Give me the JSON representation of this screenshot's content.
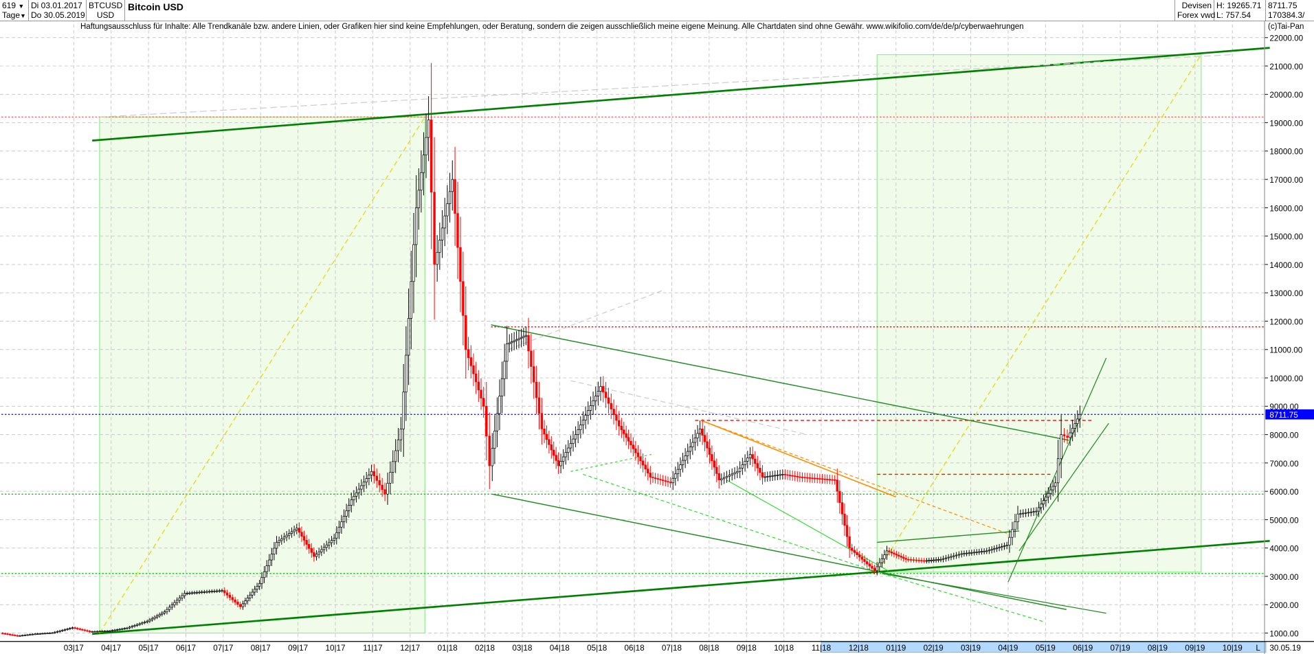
{
  "header": {
    "bars_count": "619",
    "period": "Tage",
    "start_date": "Di 03.01.2017",
    "end_date": "Do 30.05.2019",
    "symbol": "BTCUSD",
    "currency": "USD",
    "title": "Bitcoin USD",
    "market": "Devisen",
    "source": "Forex vwd",
    "high": "H: 19265.71",
    "low": "L: 757.54",
    "last": "8711.75",
    "volume": "170384.3/",
    "dropdown_icon": "caret-down-icon"
  },
  "disclaimer": "Haftungsausschluss für Inhalte: Alle Trendkanäle bzw. andere Linien, oder Grafiken hier sind keine Empfehlungen, oder Beratung, sondern die zeigen ausschließlich meine eigene Meinung. Alle Chartdaten sind ohne Gewähr.  www.wikifolio.com/de/de/p/cyberwaehrungen",
  "copyright": "(c)Tai-Pan",
  "colors": {
    "up_body": "#ffffff",
    "down_body": "#ff0000",
    "candle_outline": "#000000",
    "zone_fill": "#f0fbea",
    "zone_border": "#90ee90",
    "trend_green": "#008000",
    "last_price": "#0000ff",
    "resistance": "#ff0000",
    "support": "#00cc00",
    "axis_highlight": "#b3d9ff"
  },
  "chart_data": {
    "type": "candlestick",
    "title": "Bitcoin USD",
    "ylim": [
      1000,
      22000
    ],
    "y_ticks": [
      1000,
      2000,
      3000,
      4000,
      5000,
      6000,
      7000,
      8000,
      9000,
      10000,
      11000,
      12000,
      13000,
      14000,
      15000,
      16000,
      17000,
      18000,
      19000,
      20000,
      21000,
      22000
    ],
    "x_ticks": [
      "03|17",
      "04|17",
      "05|17",
      "06|17",
      "07|17",
      "08|17",
      "09|17",
      "10|17",
      "11|17",
      "12|17",
      "01|18",
      "02|18",
      "03|18",
      "04|18",
      "05|18",
      "06|18",
      "07|18",
      "08|18",
      "09|18",
      "10|18",
      "11|18",
      "12|18",
      "01|19",
      "02|19",
      "03|19",
      "04|19",
      "05|19",
      "06|19",
      "07|19",
      "08|19",
      "09|19",
      "10|19"
    ],
    "x_tick_months": [
      "2017-03",
      "2017-04",
      "2017-05",
      "2017-06",
      "2017-07",
      "2017-08",
      "2017-09",
      "2017-10",
      "2017-11",
      "2017-12",
      "2018-01",
      "2018-02",
      "2018-03",
      "2018-04",
      "2018-05",
      "2018-06",
      "2018-07",
      "2018-08",
      "2018-09",
      "2018-10",
      "2018-11",
      "2018-12",
      "2019-01",
      "2019-02",
      "2019-03",
      "2019-04",
      "2019-05",
      "2019-06",
      "2019-07",
      "2019-08",
      "2019-09",
      "2019-10"
    ],
    "x_axis_highlight": [
      "2018-11",
      "2019-10"
    ],
    "x_axis_end_label": "L",
    "x_axis_last_date": "30.05.19",
    "grid": true,
    "last_price_label": "8711.75",
    "closes": [
      [
        "2017-01-03",
        1000
      ],
      [
        "2017-01-17",
        900
      ],
      [
        "2017-02-01",
        970
      ],
      [
        "2017-02-15",
        1010
      ],
      [
        "2017-03-01",
        1190
      ],
      [
        "2017-03-15",
        1050
      ],
      [
        "2017-04-01",
        1080
      ],
      [
        "2017-04-15",
        1180
      ],
      [
        "2017-05-01",
        1420
      ],
      [
        "2017-05-15",
        1750
      ],
      [
        "2017-06-01",
        2400
      ],
      [
        "2017-06-15",
        2450
      ],
      [
        "2017-07-01",
        2500
      ],
      [
        "2017-07-16",
        1930
      ],
      [
        "2017-08-01",
        2750
      ],
      [
        "2017-08-15",
        4200
      ],
      [
        "2017-09-01",
        4700
      ],
      [
        "2017-09-15",
        3700
      ],
      [
        "2017-10-01",
        4350
      ],
      [
        "2017-10-15",
        5700
      ],
      [
        "2017-11-01",
        6700
      ],
      [
        "2017-11-12",
        5900
      ],
      [
        "2017-11-25",
        8200
      ],
      [
        "2017-12-07",
        16000
      ],
      [
        "2017-12-17",
        19100
      ],
      [
        "2017-12-22",
        14000
      ],
      [
        "2018-01-06",
        17000
      ],
      [
        "2018-01-17",
        11000
      ],
      [
        "2018-02-01",
        9000
      ],
      [
        "2018-02-06",
        6900
      ],
      [
        "2018-02-20",
        11200
      ],
      [
        "2018-03-05",
        11500
      ],
      [
        "2018-03-18",
        8200
      ],
      [
        "2018-04-01",
        6900
      ],
      [
        "2018-04-15",
        8000
      ],
      [
        "2018-05-05",
        9700
      ],
      [
        "2018-05-20",
        8300
      ],
      [
        "2018-06-01",
        7500
      ],
      [
        "2018-06-15",
        6500
      ],
      [
        "2018-07-01",
        6300
      ],
      [
        "2018-07-25",
        8200
      ],
      [
        "2018-08-10",
        6400
      ],
      [
        "2018-08-25",
        6700
      ],
      [
        "2018-09-05",
        7300
      ],
      [
        "2018-09-15",
        6500
      ],
      [
        "2018-10-01",
        6600
      ],
      [
        "2018-10-15",
        6500
      ],
      [
        "2018-11-13",
        6400
      ],
      [
        "2018-11-25",
        4000
      ],
      [
        "2018-12-15",
        3200
      ],
      [
        "2018-12-25",
        3900
      ],
      [
        "2019-01-10",
        3600
      ],
      [
        "2019-01-25",
        3550
      ],
      [
        "2019-02-08",
        3600
      ],
      [
        "2019-02-25",
        3800
      ],
      [
        "2019-03-15",
        3900
      ],
      [
        "2019-04-01",
        4100
      ],
      [
        "2019-04-10",
        5200
      ],
      [
        "2019-04-25",
        5300
      ],
      [
        "2019-05-10",
        6300
      ],
      [
        "2019-05-15",
        8000
      ],
      [
        "2019-05-20",
        7900
      ],
      [
        "2019-05-30",
        8711.75
      ]
    ],
    "zones": [
      {
        "from": [
          "2017-03-22",
          19200
        ],
        "to": [
          "2017-12-13",
          1000
        ]
      },
      {
        "from": [
          "2018-12-16",
          21400
        ],
        "to": [
          "2019-09-06",
          3150
        ]
      }
    ],
    "horizontal_lines": [
      {
        "price": 19200,
        "color": "#ff6666",
        "style": "dotted",
        "from": "2017-01-03"
      },
      {
        "price": 11800,
        "color": "#ff0000",
        "style": "dotted",
        "from": "2018-02-06"
      },
      {
        "price": 8711.75,
        "color": "#0000ff",
        "style": "dotted",
        "from": "2017-01-03"
      },
      {
        "price": 8500,
        "color": "#ff0000",
        "style": "dashed",
        "from": "2018-07-20",
        "to": "2019-06-10"
      },
      {
        "price": 6600,
        "color": "#8b4513",
        "style": "dashed",
        "from": "2018-12-16",
        "to": "2019-05-05"
      },
      {
        "price": 5900,
        "color": "#00cc00",
        "style": "dotted",
        "from": "2017-01-03"
      },
      {
        "price": 3100,
        "color": "#00cc00",
        "style": "dotted",
        "from": "2017-01-03"
      }
    ],
    "trend_lines": [
      {
        "from": [
          "2017-03-16",
          18370
        ],
        "to": [
          "2019-11-01",
          21640
        ],
        "color": "#008000",
        "width": 2.2
      },
      {
        "from": [
          "2017-03-16",
          970
        ],
        "to": [
          "2019-11-01",
          4250
        ],
        "color": "#008000",
        "width": 2.2
      },
      {
        "from": [
          "2017-03-22",
          1000
        ],
        "to": [
          "2017-12-13",
          19200
        ],
        "color": "#dddd00",
        "width": 1,
        "dash": "6,4"
      },
      {
        "from": [
          "2018-12-16",
          3150
        ],
        "to": [
          "2019-09-06",
          21400
        ],
        "color": "#dddd00",
        "width": 1,
        "dash": "6,4"
      },
      {
        "from": [
          "2017-03-22",
          19200
        ],
        "to": [
          "2019-10-01",
          21400
        ],
        "color": "#cccccc",
        "width": 1,
        "dash": "8,4"
      },
      {
        "from": [
          "2018-02-06",
          11870
        ],
        "to": [
          "2019-05-20",
          7800
        ],
        "color": "#228b22",
        "width": 1.2
      },
      {
        "from": [
          "2018-02-07",
          5900
        ],
        "to": [
          "2019-05-18",
          1830
        ],
        "color": "#228b22",
        "width": 1.2
      },
      {
        "from": [
          "2018-07-25",
          8500
        ],
        "to": [
          "2019-04-01",
          4500
        ],
        "color": "#ff8c00",
        "width": 1,
        "dash": "4,3"
      },
      {
        "from": [
          "2018-07-25",
          8500
        ],
        "to": [
          "2019-01-01",
          5800
        ],
        "color": "#ff8c00",
        "width": 1.3
      },
      {
        "from": [
          "2018-04-20",
          6600
        ],
        "to": [
          "2018-12-20",
          3100
        ],
        "color": "#33dd33",
        "width": 1,
        "dash": "4,3"
      },
      {
        "from": [
          "2018-08-15",
          6400
        ],
        "to": [
          "2018-12-25",
          3200
        ],
        "color": "#33dd33",
        "width": 1
      },
      {
        "from": [
          "2018-12-20",
          3100
        ],
        "to": [
          "2019-04-30",
          1400
        ],
        "color": "#33dd33",
        "width": 1,
        "dash": "4,3"
      },
      {
        "from": [
          "2018-12-20",
          3100
        ],
        "to": [
          "2019-06-20",
          1700
        ],
        "color": "#228b22",
        "width": 1
      },
      {
        "from": [
          "2018-12-16",
          4200
        ],
        "to": [
          "2019-04-10",
          4600
        ],
        "color": "#228b22",
        "width": 1.2
      },
      {
        "from": [
          "2019-04-01",
          2800
        ],
        "to": [
          "2019-06-20",
          10700
        ],
        "color": "#228b22",
        "width": 1
      },
      {
        "from": [
          "2019-04-10",
          3900
        ],
        "to": [
          "2019-06-22",
          8400
        ],
        "color": "#228b22",
        "width": 1
      },
      {
        "from": [
          "2018-04-10",
          6700
        ],
        "to": [
          "2018-06-15",
          7300
        ],
        "color": "#33dd33",
        "width": 1,
        "dash": "3,3"
      },
      {
        "from": [
          "2018-04-10",
          9900
        ],
        "to": [
          "2018-10-20",
          8000
        ],
        "color": "#cccccc",
        "width": 1,
        "dash": "6,4"
      },
      {
        "from": [
          "2018-02-20",
          11000
        ],
        "to": [
          "2018-06-25",
          13100
        ],
        "color": "#cccccc",
        "width": 1,
        "dash": "6,4"
      }
    ]
  }
}
